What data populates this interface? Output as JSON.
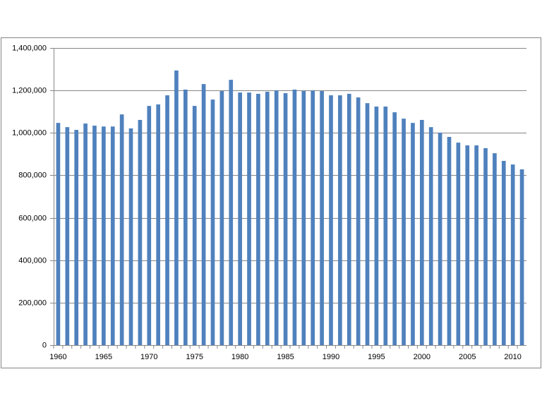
{
  "chart_data": {
    "type": "bar",
    "categories": [
      "1960",
      null,
      null,
      null,
      null,
      "1965",
      null,
      null,
      null,
      null,
      "1970",
      null,
      null,
      null,
      null,
      "1975",
      null,
      null,
      null,
      null,
      "1980",
      null,
      null,
      null,
      null,
      "1985",
      null,
      null,
      null,
      null,
      "1990",
      null,
      null,
      null,
      null,
      "1995",
      null,
      null,
      null,
      null,
      "2000",
      null,
      null,
      null,
      null,
      "2005",
      null,
      null,
      null,
      null,
      "2010",
      null
    ],
    "values": [
      1047000,
      1027000,
      1014000,
      1044000,
      1034000,
      1030000,
      1030000,
      1087000,
      1021000,
      1061000,
      1127000,
      1134000,
      1177000,
      1294000,
      1204000,
      1127000,
      1230000,
      1157000,
      1197000,
      1250000,
      1190000,
      1190000,
      1184000,
      1194000,
      1200000,
      1187000,
      1204000,
      1197000,
      1200000,
      1197000,
      1177000,
      1177000,
      1184000,
      1167000,
      1140000,
      1124000,
      1124000,
      1097000,
      1067000,
      1047000,
      1061000,
      1027000,
      1001000,
      981000,
      954000,
      941000,
      941000,
      928000,
      904000,
      868000,
      851000,
      828000
    ],
    "color": "#4f81bd",
    "ylim": [
      0,
      1400000
    ],
    "yticks": [
      0,
      {
        "value": 200000,
        "label": "200,000"
      },
      {
        "value": 400000,
        "label": "400,000"
      },
      {
        "value": 600000,
        "label": "600,000"
      },
      {
        "value": 800000,
        "label": "800,000"
      },
      {
        "value": 1000000,
        "label": "1,000,000"
      },
      {
        "value": 1200000,
        "label": "1,200,000"
      },
      {
        "value": 1400000,
        "label": "1,400,000"
      }
    ],
    "grid": true
  }
}
